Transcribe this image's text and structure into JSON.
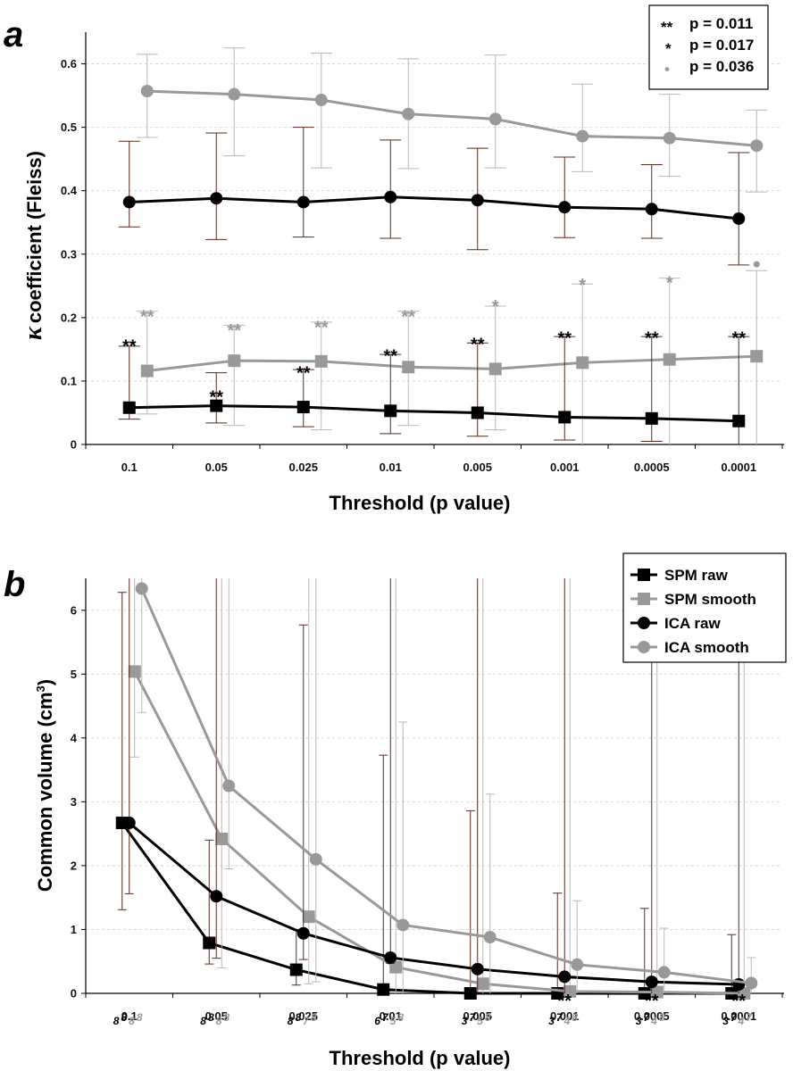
{
  "chart_data": [
    {
      "panel": "a",
      "type": "line",
      "xlabel": "Threshold (p value)",
      "ylabel_symbol": "κ",
      "ylabel": "coefficient (Fleiss)",
      "ylim": [
        0,
        0.65
      ],
      "yticks": [
        "0",
        "0.1",
        "0.2",
        "0.3",
        "0.4",
        "0.5",
        "0.6"
      ],
      "categories": [
        "0.1",
        "0.05",
        "0.025",
        "0.01",
        "0.005",
        "0.001",
        "0.0005",
        "0.0001"
      ],
      "grid": true,
      "legend_position": "top-right",
      "legend": [
        {
          "symbol": "**",
          "text": "p = 0.011"
        },
        {
          "symbol": "*",
          "text": "p = 0.017"
        },
        {
          "symbol": "•",
          "text": "p = 0.036"
        }
      ],
      "series": [
        {
          "color": "#999999",
          "marker": "circle",
          "values": [
            0.557,
            0.552,
            0.543,
            0.521,
            0.513,
            0.486,
            0.483,
            0.471
          ],
          "err_up": [
            0.615,
            0.625,
            0.617,
            0.608,
            0.614,
            0.568,
            0.552,
            0.527
          ],
          "err_down": [
            0.484,
            0.455,
            0.436,
            0.435,
            0.436,
            0.43,
            0.423,
            0.398
          ]
        },
        {
          "color": "#000000",
          "marker": "circle",
          "values": [
            0.382,
            0.388,
            0.382,
            0.39,
            0.385,
            0.374,
            0.371,
            0.356
          ],
          "err_up": [
            0.478,
            0.491,
            0.5,
            0.48,
            0.467,
            0.453,
            0.441,
            0.46
          ],
          "err_down": [
            0.343,
            0.323,
            0.327,
            0.325,
            0.307,
            0.326,
            0.325,
            0.283
          ]
        },
        {
          "color": "#999999",
          "marker": "square",
          "values": [
            0.116,
            0.132,
            0.131,
            0.122,
            0.119,
            0.129,
            0.134,
            0.139
          ],
          "err_up": [
            0.21,
            0.188,
            0.193,
            0.21,
            0.218,
            0.253,
            0.262,
            0.274
          ],
          "err_down": [
            0.048,
            0.03,
            0.023,
            0.03,
            0.023,
            0.0,
            0.0,
            0.0
          ]
        },
        {
          "color": "#000000",
          "marker": "square",
          "values": [
            0.058,
            0.061,
            0.059,
            0.053,
            0.05,
            0.043,
            0.041,
            0.037
          ],
          "err_up": [
            0.155,
            0.113,
            0.118,
            0.142,
            0.16,
            0.17,
            0.17,
            0.17
          ],
          "err_down": [
            0.04,
            0.034,
            0.028,
            0.017,
            0.013,
            0.007,
            0.005,
            0.0
          ]
        }
      ],
      "annotations": [
        {
          "text": "**",
          "color": "#000000",
          "x": "0.1",
          "y": 0.165
        },
        {
          "text": "**",
          "color": "#000000",
          "x": "0.05",
          "y": 0.085
        },
        {
          "text": "**",
          "color": "#000000",
          "x": "0.025",
          "y": 0.123
        },
        {
          "text": "**",
          "color": "#000000",
          "x": "0.01",
          "y": 0.15
        },
        {
          "text": "**",
          "color": "#000000",
          "x": "0.005",
          "y": 0.168
        },
        {
          "text": "**",
          "color": "#000000",
          "x": "0.001",
          "y": 0.178
        },
        {
          "text": "**",
          "color": "#000000",
          "x": "0.0005",
          "y": 0.178
        },
        {
          "text": "**",
          "color": "#000000",
          "x": "0.0001",
          "y": 0.178
        },
        {
          "text": "**",
          "color": "#999999",
          "x": "0.1",
          "y": 0.212
        },
        {
          "text": "**",
          "color": "#999999",
          "x": "0.05",
          "y": 0.19
        },
        {
          "text": "**",
          "color": "#999999",
          "x": "0.025",
          "y": 0.195
        },
        {
          "text": "**",
          "color": "#999999",
          "x": "0.01",
          "y": 0.212
        },
        {
          "text": "*",
          "color": "#999999",
          "x": "0.005",
          "y": 0.228
        },
        {
          "text": "*",
          "color": "#999999",
          "x": "0.001",
          "y": 0.262
        },
        {
          "text": "*",
          "color": "#999999",
          "x": "0.0005",
          "y": 0.265
        },
        {
          "text": "•",
          "color": "#999999",
          "x": "0.0001",
          "y": 0.284
        }
      ]
    },
    {
      "panel": "b",
      "type": "line",
      "xlabel": "Threshold (p value)",
      "ylabel": "Common volume (cm",
      "ylabel_sup": "3",
      "ylabel_end": ")",
      "ylim": [
        0,
        6.5
      ],
      "yticks": [
        "0",
        "1",
        "2",
        "3",
        "4",
        "5",
        "6"
      ],
      "categories": [
        "0.1",
        "0.05",
        "0.025",
        "0.01",
        "0.005",
        "0.001",
        "0.0005",
        "0.0001"
      ],
      "grid": true,
      "legend_position": "top-right",
      "sample_sizes": [
        [
          "8",
          "8",
          "8",
          "8"
        ],
        [
          "8",
          "8",
          "8",
          "8"
        ],
        [
          "8",
          "8",
          "7",
          "8"
        ],
        [
          "6",
          "7",
          "5",
          "8"
        ],
        [
          "3",
          "7",
          "5",
          "8"
        ],
        [
          "3",
          "7",
          "4",
          "8"
        ],
        [
          "3",
          "7",
          "4",
          "8"
        ],
        [
          "3",
          "7",
          "4",
          "7"
        ]
      ],
      "series": [
        {
          "name": "SPM raw",
          "color": "#000000",
          "marker": "square",
          "values": [
            2.67,
            0.79,
            0.37,
            0.06,
            0.0,
            0.0,
            0.0,
            0.0
          ],
          "err_up": [
            6.28,
            2.4,
            1.0,
            3.73,
            2.86,
            1.57,
            1.33,
            0.92
          ],
          "err_down": [
            1.31,
            0.46,
            0.13,
            0.0,
            0.0,
            0.0,
            0.0,
            0.0
          ]
        },
        {
          "name": "SPM smooth",
          "color": "#999999",
          "marker": "square",
          "values": [
            5.04,
            2.42,
            1.2,
            0.41,
            0.15,
            0.03,
            0.02,
            0.0
          ],
          "err_up": [
            6.5,
            6.5,
            6.5,
            6.5,
            6.5,
            6.5,
            6.5,
            6.5
          ],
          "err_down": [
            3.7,
            0.4,
            0.15,
            0.0,
            0.0,
            0.0,
            0.0,
            0.0
          ]
        },
        {
          "name": "ICA raw",
          "color": "#000000",
          "marker": "circle",
          "values": [
            2.67,
            1.52,
            0.94,
            0.56,
            0.38,
            0.26,
            0.18,
            0.14
          ],
          "err_up": [
            6.5,
            6.5,
            5.77,
            6.5,
            6.5,
            6.5,
            6.5,
            6.5
          ],
          "err_down": [
            1.56,
            0.55,
            0.53,
            0.47,
            0.0,
            0.0,
            0.0,
            0.0
          ]
        },
        {
          "name": "ICA smooth",
          "color": "#999999",
          "marker": "circle",
          "values": [
            6.34,
            3.25,
            2.1,
            1.07,
            0.88,
            0.45,
            0.33,
            0.16
          ],
          "err_up": [
            6.5,
            6.5,
            6.5,
            4.25,
            3.12,
            1.45,
            1.02,
            0.56
          ],
          "err_down": [
            4.4,
            1.95,
            0.18,
            0.0,
            0.0,
            0.0,
            0.0,
            0.0
          ]
        }
      ],
      "annotations": [
        {
          "text": "**",
          "color": "#000000",
          "x": "0.001"
        },
        {
          "text": "**",
          "color": "#000000",
          "x": "0.0005"
        },
        {
          "text": "**",
          "color": "#000000",
          "x": "0.0001"
        }
      ]
    }
  ]
}
